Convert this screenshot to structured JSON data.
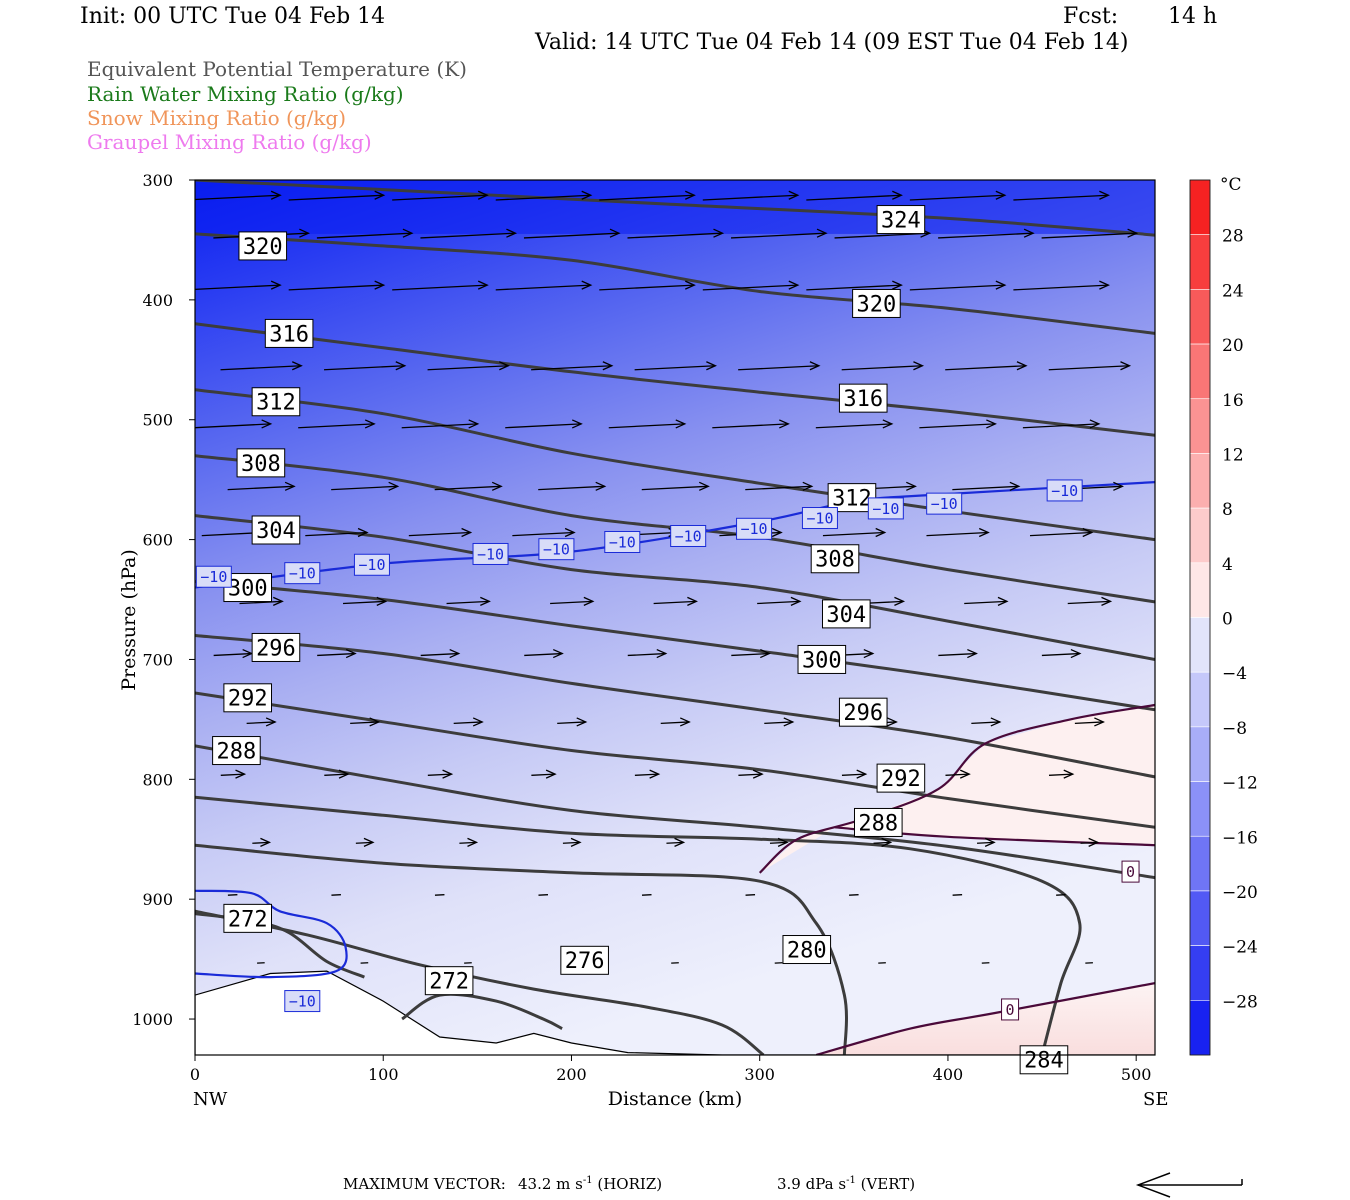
{
  "header": {
    "init": "Init: 00 UTC Tue 04 Feb 14",
    "fcst_label": "Fcst:",
    "fcst_value": "14 h",
    "valid": "Valid: 14 UTC Tue 04 Feb 14 (09 EST Tue 04 Feb 14)"
  },
  "legend": [
    {
      "label": "Equivalent Potential Temperature (K)",
      "color": "#555555"
    },
    {
      "label": "Rain Water Mixing Ratio (g/kg)",
      "color": "#1a7a1a"
    },
    {
      "label": "Snow Mixing Ratio (g/kg)",
      "color": "#f0955a"
    },
    {
      "label": "Graupel Mixing Ratio (g/kg)",
      "color": "#ee7aee"
    }
  ],
  "chart_data": {
    "type": "cross-section",
    "xlabel": "Distance (km)",
    "ylabel": "Pressure (hPa)",
    "x_ticks": [
      "0",
      "100",
      "200",
      "300",
      "400",
      "500"
    ],
    "y_ticks": [
      "300",
      "400",
      "500",
      "600",
      "700",
      "800",
      "900",
      "1000"
    ],
    "xlim": [
      0,
      510
    ],
    "ylim": [
      300,
      1030
    ],
    "x_end_labels": {
      "left": "NW",
      "right": "SE"
    },
    "colorbar": {
      "unit": "°C",
      "labels": [
        "28",
        "24",
        "20",
        "16",
        "12",
        "8",
        "4",
        "0",
        "−4",
        "−8",
        "−12",
        "−16",
        "−20",
        "−24",
        "−28"
      ],
      "range": [
        -32,
        32
      ],
      "step": 4
    },
    "theta_e_contours": [
      {
        "value": "324",
        "points": [
          [
            0,
            300
          ],
          [
            100,
            308
          ],
          [
            250,
            320
          ],
          [
            400,
            332
          ],
          [
            510,
            346
          ]
        ],
        "labels": [
          [
            375,
            333
          ]
        ]
      },
      {
        "value": "320",
        "points": [
          [
            0,
            345
          ],
          [
            100,
            355
          ],
          [
            200,
            367
          ],
          [
            300,
            393
          ],
          [
            400,
            407
          ],
          [
            510,
            428
          ]
        ],
        "labels": [
          [
            36,
            355
          ],
          [
            362,
            403
          ]
        ]
      },
      {
        "value": "316",
        "points": [
          [
            0,
            420
          ],
          [
            100,
            440
          ],
          [
            200,
            460
          ],
          [
            300,
            477
          ],
          [
            400,
            493
          ],
          [
            510,
            513
          ]
        ],
        "labels": [
          [
            50,
            428
          ],
          [
            355,
            482
          ]
        ]
      },
      {
        "value": "312",
        "points": [
          [
            0,
            475
          ],
          [
            100,
            495
          ],
          [
            200,
            528
          ],
          [
            300,
            553
          ],
          [
            400,
            576
          ],
          [
            510,
            600
          ]
        ],
        "labels": [
          [
            43,
            485
          ],
          [
            349,
            565
          ]
        ]
      },
      {
        "value": "308",
        "points": [
          [
            0,
            530
          ],
          [
            100,
            548
          ],
          [
            200,
            580
          ],
          [
            300,
            598
          ],
          [
            400,
            625
          ],
          [
            510,
            652
          ]
        ],
        "labels": [
          [
            35,
            536
          ],
          [
            340,
            616
          ]
        ]
      },
      {
        "value": "304",
        "points": [
          [
            0,
            580
          ],
          [
            100,
            598
          ],
          [
            200,
            625
          ],
          [
            300,
            640
          ],
          [
            400,
            668
          ],
          [
            510,
            700
          ]
        ],
        "labels": [
          [
            43,
            592
          ],
          [
            346,
            662
          ]
        ]
      },
      {
        "value": "300",
        "points": [
          [
            0,
            635
          ],
          [
            100,
            650
          ],
          [
            200,
            672
          ],
          [
            300,
            693
          ],
          [
            400,
            715
          ],
          [
            510,
            742
          ]
        ],
        "labels": [
          [
            28,
            640
          ],
          [
            333,
            700
          ]
        ]
      },
      {
        "value": "296",
        "points": [
          [
            0,
            680
          ],
          [
            100,
            695
          ],
          [
            200,
            720
          ],
          [
            300,
            742
          ],
          [
            400,
            765
          ],
          [
            510,
            798
          ]
        ],
        "labels": [
          [
            43,
            690
          ],
          [
            355,
            744
          ]
        ]
      },
      {
        "value": "292",
        "points": [
          [
            0,
            728
          ],
          [
            100,
            752
          ],
          [
            200,
            776
          ],
          [
            300,
            792
          ],
          [
            400,
            816
          ],
          [
            510,
            840
          ]
        ],
        "labels": [
          [
            28,
            732
          ],
          [
            375,
            799
          ]
        ]
      },
      {
        "value": "288",
        "points": [
          [
            0,
            772
          ],
          [
            100,
            800
          ],
          [
            200,
            826
          ],
          [
            300,
            840
          ],
          [
            400,
            856
          ],
          [
            510,
            882
          ]
        ],
        "labels": [
          [
            22,
            776
          ],
          [
            363,
            836
          ]
        ]
      },
      {
        "value": "284",
        "points": [
          [
            0,
            815
          ],
          [
            100,
            830
          ],
          [
            200,
            845
          ],
          [
            300,
            850
          ],
          [
            380,
            858
          ],
          [
            450,
            885
          ],
          [
            470,
            920
          ],
          [
            460,
            970
          ],
          [
            450,
            1030
          ]
        ],
        "labels": [
          [
            451,
            1034
          ]
        ]
      },
      {
        "value": "280",
        "points": [
          [
            0,
            855
          ],
          [
            100,
            870
          ],
          [
            200,
            878
          ],
          [
            300,
            885
          ],
          [
            330,
            920
          ],
          [
            345,
            980
          ],
          [
            345,
            1030
          ]
        ],
        "labels": [
          [
            325,
            942
          ]
        ]
      },
      {
        "value": "276",
        "points": [
          [
            0,
            910
          ],
          [
            60,
            930
          ],
          [
            120,
            955
          ],
          [
            180,
            975
          ],
          [
            240,
            990
          ],
          [
            280,
            1005
          ],
          [
            302,
            1030
          ]
        ],
        "labels": [
          [
            207,
            951
          ]
        ]
      },
      {
        "value": "272",
        "points": [
          [
            0,
            912
          ],
          [
            30,
            918
          ],
          [
            50,
            928
          ],
          [
            70,
            952
          ],
          [
            90,
            965
          ]
        ],
        "labels": [
          [
            28,
            916
          ]
        ]
      },
      {
        "value": "272",
        "points": [
          [
            110,
            1000
          ],
          [
            130,
            980
          ],
          [
            160,
            985
          ],
          [
            185,
            1000
          ],
          [
            195,
            1008
          ]
        ],
        "labels": [
          [
            135,
            968
          ]
        ]
      }
    ],
    "isotherm_minus10": {
      "value": "−10",
      "points": [
        [
          0,
          640
        ],
        [
          100,
          620
        ],
        [
          200,
          610
        ],
        [
          300,
          585
        ],
        [
          350,
          568
        ],
        [
          400,
          562
        ],
        [
          510,
          552
        ]
      ],
      "labels": [
        [
          10,
          631
        ],
        [
          57,
          628
        ],
        [
          94,
          621
        ],
        [
          157,
          612
        ],
        [
          192,
          608
        ],
        [
          227,
          602
        ],
        [
          262,
          597
        ],
        [
          297,
          591
        ],
        [
          332,
          582
        ],
        [
          367,
          574
        ],
        [
          398,
          570
        ],
        [
          462,
          559
        ],
        [
          57,
          985
        ]
      ],
      "lower_points": [
        [
          0,
          893
        ],
        [
          30,
          895
        ],
        [
          45,
          910
        ],
        [
          70,
          920
        ],
        [
          80,
          940
        ],
        [
          75,
          960
        ],
        [
          40,
          965
        ],
        [
          0,
          962
        ]
      ]
    },
    "isotherm_zero": {
      "value": "0",
      "points_upper": [
        [
          300,
          878
        ],
        [
          320,
          850
        ],
        [
          355,
          833
        ],
        [
          395,
          808
        ],
        [
          420,
          770
        ],
        [
          465,
          750
        ],
        [
          510,
          738
        ]
      ],
      "points_lower": [
        [
          330,
          1030
        ],
        [
          380,
          1008
        ],
        [
          425,
          995
        ],
        [
          510,
          970
        ]
      ],
      "labels": [
        [
          497,
          877
        ],
        [
          433,
          992
        ]
      ]
    },
    "terrain_pressure_hpa": [
      [
        0,
        980
      ],
      [
        40,
        962
      ],
      [
        70,
        960
      ],
      [
        100,
        985
      ],
      [
        130,
        1015
      ],
      [
        160,
        1020
      ],
      [
        180,
        1012
      ],
      [
        200,
        1020
      ],
      [
        230,
        1028
      ],
      [
        280,
        1030
      ],
      [
        510,
        1030
      ]
    ],
    "wind_vector_scale": {
      "horizontal": "43.2 m s",
      "vertical": "3.9 dPa s"
    }
  },
  "footer": {
    "label": "MAXIMUM VECTOR:",
    "horiz": "43.2 m s",
    "horiz_suffix": " (HORIZ)",
    "vert": "3.9 dPa s",
    "vert_suffix": " (VERT)",
    "exponent": "-1"
  }
}
